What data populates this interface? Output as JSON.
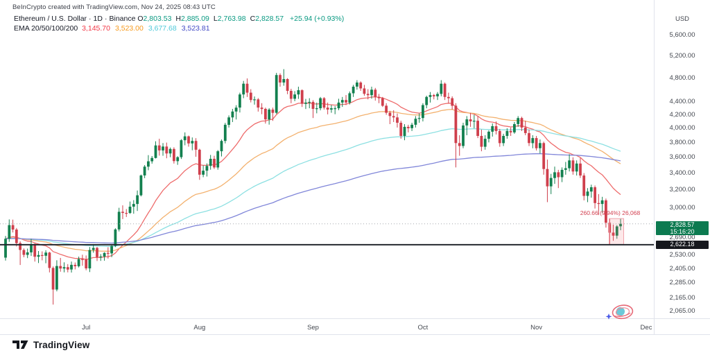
{
  "attribution": "BeInCrypto created with TradingView.com, Nov 24, 2025 08:43 UTC",
  "legend": {
    "symbol": "Ethereum / U.S. Dollar",
    "separator": "·",
    "interval": "1D",
    "exchange": "Binance",
    "ohlc": {
      "o_label": "O",
      "o": "2,803.53",
      "h_label": "H",
      "h": "2,885.09",
      "l_label": "L",
      "l": "2,763.98",
      "c_label": "C",
      "c": "2,828.57",
      "change": "+25.94 (+0.93%)"
    },
    "ema": {
      "label": "EMA 20/50/100/200",
      "values": [
        {
          "text": "3,145.70",
          "color": "#f23645"
        },
        {
          "text": "3,523.00",
          "color": "#f7991c"
        },
        {
          "text": "3,677.68",
          "color": "#4ec9d9"
        },
        {
          "text": "3,523.81",
          "color": "#4149c5"
        }
      ]
    }
  },
  "price_axis": {
    "currency": "USD",
    "ticks": [
      5600,
      5200,
      4800,
      4400,
      4200,
      4000,
      3800,
      3600,
      3400,
      3200,
      3000,
      2690,
      2530,
      2405,
      2285,
      2165,
      2065
    ],
    "current_badge": {
      "price": "2,828.57",
      "countdown": "15:16:20",
      "bg": "#0c7a50"
    },
    "level_badge": {
      "price": "2,622.18",
      "bg": "#16181d"
    }
  },
  "time_axis": {
    "months": [
      {
        "label": "Jul",
        "index": 22
      },
      {
        "label": "Aug",
        "index": 53
      },
      {
        "label": "Sep",
        "index": 84
      },
      {
        "label": "Oct",
        "index": 114
      },
      {
        "label": "Nov",
        "index": 145
      },
      {
        "label": "Dec",
        "index": 175
      }
    ]
  },
  "annotation": {
    "text": "260.66 (9.94%) 26,068"
  },
  "footer": {
    "brand": "TradingView"
  },
  "chart_data": {
    "type": "candlestick",
    "title": "Ethereum / U.S. Dollar - 1D - Binance",
    "interval": "1D",
    "scale": "logarithmic",
    "grid": "off",
    "start_date": "2025-06-09",
    "end_date": "2025-11-24",
    "up_color": "#13804f",
    "down_color": "#cf3f4c",
    "current_price": 2828.57,
    "horizontal_line": 2622.18,
    "measure": {
      "from": 2622.18,
      "to": 2882.84,
      "change": 260.66,
      "pct": 9.94
    },
    "emas": [
      {
        "period": 20,
        "color": "#ee6b6b"
      },
      {
        "period": 50,
        "color": "#f3b16e"
      },
      {
        "period": 100,
        "color": "#8ce0e2"
      },
      {
        "period": 200,
        "color": "#8086d9"
      }
    ],
    "candles": [
      [
        2503,
        2707,
        2476,
        2680
      ],
      [
        2680,
        2874,
        2650,
        2816
      ],
      [
        2816,
        2872,
        2742,
        2771
      ],
      [
        2771,
        2786,
        2606,
        2638
      ],
      [
        2638,
        2655,
        2437,
        2573
      ],
      [
        2573,
        2588,
        2506,
        2528
      ],
      [
        2528,
        2586,
        2498,
        2551
      ],
      [
        2551,
        2679,
        2518,
        2619
      ],
      [
        2619,
        2636,
        2467,
        2511
      ],
      [
        2511,
        2563,
        2454,
        2526
      ],
      [
        2526,
        2560,
        2478,
        2520
      ],
      [
        2520,
        2570,
        2452,
        2549
      ],
      [
        2549,
        2556,
        2372,
        2411
      ],
      [
        2411,
        2424,
        2111,
        2230
      ],
      [
        2230,
        2479,
        2215,
        2428
      ],
      [
        2428,
        2500,
        2378,
        2406
      ],
      [
        2406,
        2460,
        2373,
        2418
      ],
      [
        2418,
        2445,
        2373,
        2397
      ],
      [
        2397,
        2467,
        2371,
        2438
      ],
      [
        2438,
        2459,
        2398,
        2426
      ],
      [
        2426,
        2512,
        2415,
        2489
      ],
      [
        2489,
        2529,
        2430,
        2487
      ],
      [
        2487,
        2522,
        2391,
        2407
      ],
      [
        2407,
        2601,
        2375,
        2573
      ],
      [
        2573,
        2629,
        2548,
        2592
      ],
      [
        2592,
        2602,
        2472,
        2507
      ],
      [
        2507,
        2535,
        2473,
        2513
      ],
      [
        2513,
        2552,
        2475,
        2546
      ],
      [
        2546,
        2599,
        2494,
        2541
      ],
      [
        2541,
        2624,
        2507,
        2611
      ],
      [
        2611,
        2783,
        2600,
        2772
      ],
      [
        2772,
        2998,
        2752,
        2955
      ],
      [
        2955,
        3025,
        2878,
        2943
      ],
      [
        2943,
        2984,
        2900,
        2942
      ],
      [
        2942,
        3067,
        2933,
        3010
      ],
      [
        3010,
        3082,
        2934,
        3040
      ],
      [
        3040,
        3192,
        2964,
        3137
      ],
      [
        3137,
        3382,
        3124,
        3371
      ],
      [
        3371,
        3500,
        3338,
        3480
      ],
      [
        3480,
        3628,
        3435,
        3548
      ],
      [
        3548,
        3616,
        3518,
        3591
      ],
      [
        3591,
        3815,
        3585,
        3758
      ],
      [
        3758,
        3850,
        3622,
        3691
      ],
      [
        3691,
        3790,
        3620,
        3743
      ],
      [
        3743,
        3797,
        3587,
        3650
      ],
      [
        3650,
        3730,
        3601,
        3710
      ],
      [
        3710,
        3733,
        3519,
        3550
      ],
      [
        3550,
        3614,
        3503,
        3602
      ],
      [
        3602,
        3845,
        3578,
        3830
      ],
      [
        3830,
        3940,
        3760,
        3884
      ],
      [
        3884,
        3895,
        3741,
        3786
      ],
      [
        3786,
        3868,
        3693,
        3820
      ],
      [
        3820,
        3859,
        3606,
        3700
      ],
      [
        3700,
        3713,
        3318,
        3380
      ],
      [
        3380,
        3495,
        3350,
        3430
      ],
      [
        3430,
        3521,
        3358,
        3489
      ],
      [
        3489,
        3631,
        3442,
        3580
      ],
      [
        3580,
        3620,
        3450,
        3470
      ],
      [
        3470,
        3695,
        3442,
        3680
      ],
      [
        3680,
        3840,
        3611,
        3820
      ],
      [
        3820,
        4078,
        3786,
        4050
      ],
      [
        4050,
        4190,
        4010,
        4160
      ],
      [
        4160,
        4290,
        4090,
        4250
      ],
      [
        4250,
        4348,
        4128,
        4310
      ],
      [
        4310,
        4550,
        4235,
        4520
      ],
      [
        4520,
        4747,
        4460,
        4700
      ],
      [
        4700,
        4790,
        4480,
        4550
      ],
      [
        4550,
        4608,
        4392,
        4430
      ],
      [
        4430,
        4488,
        4356,
        4440
      ],
      [
        4440,
        4462,
        4248,
        4310
      ],
      [
        4310,
        4380,
        4208,
        4290
      ],
      [
        4290,
        4310,
        4068,
        4130
      ],
      [
        4130,
        4302,
        4052,
        4280
      ],
      [
        4280,
        4310,
        4108,
        4230
      ],
      [
        4230,
        4888,
        4212,
        4850
      ],
      [
        4850,
        4880,
        4650,
        4720
      ],
      [
        4720,
        4955,
        4666,
        4780
      ],
      [
        4780,
        4795,
        4525,
        4580
      ],
      [
        4580,
        4615,
        4380,
        4450
      ],
      [
        4450,
        4575,
        4412,
        4520
      ],
      [
        4520,
        4650,
        4448,
        4590
      ],
      [
        4590,
        4605,
        4320,
        4370
      ],
      [
        4370,
        4448,
        4288,
        4390
      ],
      [
        4390,
        4460,
        4300,
        4400
      ],
      [
        4400,
        4428,
        4150,
        4290
      ],
      [
        4290,
        4390,
        4222,
        4300
      ],
      [
        4300,
        4480,
        4268,
        4460
      ],
      [
        4460,
        4478,
        4280,
        4310
      ],
      [
        4310,
        4390,
        4206,
        4280
      ],
      [
        4280,
        4350,
        4230,
        4300
      ],
      [
        4300,
        4332,
        4208,
        4300
      ],
      [
        4300,
        4450,
        4270,
        4390
      ],
      [
        4390,
        4480,
        4322,
        4430
      ],
      [
        4430,
        4510,
        4350,
        4390
      ],
      [
        4390,
        4570,
        4360,
        4540
      ],
      [
        4540,
        4680,
        4480,
        4650
      ],
      [
        4650,
        4760,
        4600,
        4720
      ],
      [
        4720,
        4740,
        4580,
        4620
      ],
      [
        4620,
        4680,
        4500,
        4530
      ],
      [
        4530,
        4608,
        4440,
        4510
      ],
      [
        4510,
        4650,
        4450,
        4600
      ],
      [
        4600,
        4628,
        4420,
        4480
      ],
      [
        4480,
        4530,
        4380,
        4460
      ],
      [
        4460,
        4480,
        4320,
        4340
      ],
      [
        4340,
        4380,
        4200,
        4230
      ],
      [
        4230,
        4260,
        4060,
        4180
      ],
      [
        4180,
        4270,
        4090,
        4160
      ],
      [
        4160,
        4220,
        4010,
        4080
      ],
      [
        4080,
        4110,
        3850,
        3890
      ],
      [
        3890,
        4060,
        3830,
        4020
      ],
      [
        4020,
        4050,
        3940,
        4000
      ],
      [
        4000,
        4080,
        3960,
        4050
      ],
      [
        4050,
        4180,
        4010,
        4140
      ],
      [
        4140,
        4220,
        4080,
        4150
      ],
      [
        4150,
        4380,
        4100,
        4350
      ],
      [
        4350,
        4500,
        4300,
        4480
      ],
      [
        4480,
        4560,
        4390,
        4510
      ],
      [
        4510,
        4530,
        4440,
        4490
      ],
      [
        4490,
        4560,
        4430,
        4530
      ],
      [
        4530,
        4760,
        4490,
        4700
      ],
      [
        4700,
        4720,
        4430,
        4480
      ],
      [
        4480,
        4550,
        4380,
        4460
      ],
      [
        4460,
        4490,
        4280,
        4340
      ],
      [
        4340,
        4380,
        3470,
        3790
      ],
      [
        3790,
        3900,
        3620,
        3750
      ],
      [
        3750,
        4080,
        3720,
        4040
      ],
      [
        4040,
        4180,
        3900,
        4130
      ],
      [
        4130,
        4230,
        4020,
        4100
      ],
      [
        4100,
        4200,
        4000,
        4110
      ],
      [
        4110,
        4180,
        3860,
        3890
      ],
      [
        3890,
        3980,
        3680,
        3740
      ],
      [
        3740,
        3900,
        3700,
        3850
      ],
      [
        3850,
        3970,
        3800,
        3950
      ],
      [
        3950,
        4070,
        3880,
        4030
      ],
      [
        4030,
        4100,
        3910,
        3960
      ],
      [
        3960,
        3990,
        3740,
        3790
      ],
      [
        3790,
        3920,
        3750,
        3890
      ],
      [
        3890,
        4000,
        3850,
        3960
      ],
      [
        3960,
        4010,
        3890,
        3940
      ],
      [
        3940,
        4090,
        3920,
        4060
      ],
      [
        4060,
        4180,
        4020,
        4150
      ],
      [
        4150,
        4170,
        3960,
        4010
      ],
      [
        4010,
        4110,
        3900,
        3930
      ],
      [
        3930,
        3980,
        3750,
        3790
      ],
      [
        3790,
        3900,
        3720,
        3860
      ],
      [
        3860,
        3890,
        3690,
        3720
      ],
      [
        3720,
        3840,
        3650,
        3790
      ],
      [
        3790,
        3810,
        3380,
        3450
      ],
      [
        3450,
        3570,
        3060,
        3240
      ],
      [
        3240,
        3390,
        3150,
        3340
      ],
      [
        3340,
        3480,
        3270,
        3410
      ],
      [
        3410,
        3440,
        3220,
        3350
      ],
      [
        3350,
        3470,
        3290,
        3440
      ],
      [
        3440,
        3540,
        3380,
        3460
      ],
      [
        3460,
        3640,
        3420,
        3560
      ],
      [
        3560,
        3600,
        3380,
        3420
      ],
      [
        3420,
        3560,
        3370,
        3520
      ],
      [
        3520,
        3590,
        3340,
        3370
      ],
      [
        3370,
        3400,
        3080,
        3130
      ],
      [
        3130,
        3220,
        3060,
        3180
      ],
      [
        3180,
        3260,
        3110,
        3230
      ],
      [
        3230,
        3250,
        2990,
        3050
      ],
      [
        3050,
        3150,
        2920,
        3040
      ],
      [
        3040,
        3120,
        2940,
        3080
      ],
      [
        3080,
        3100,
        2790,
        2840
      ],
      [
        2840,
        2880,
        2622,
        2740
      ],
      [
        2740,
        2820,
        2660,
        2710
      ],
      [
        2710,
        2815,
        2680,
        2802
      ],
      [
        2803.53,
        2885.09,
        2763.98,
        2828.57
      ]
    ]
  }
}
